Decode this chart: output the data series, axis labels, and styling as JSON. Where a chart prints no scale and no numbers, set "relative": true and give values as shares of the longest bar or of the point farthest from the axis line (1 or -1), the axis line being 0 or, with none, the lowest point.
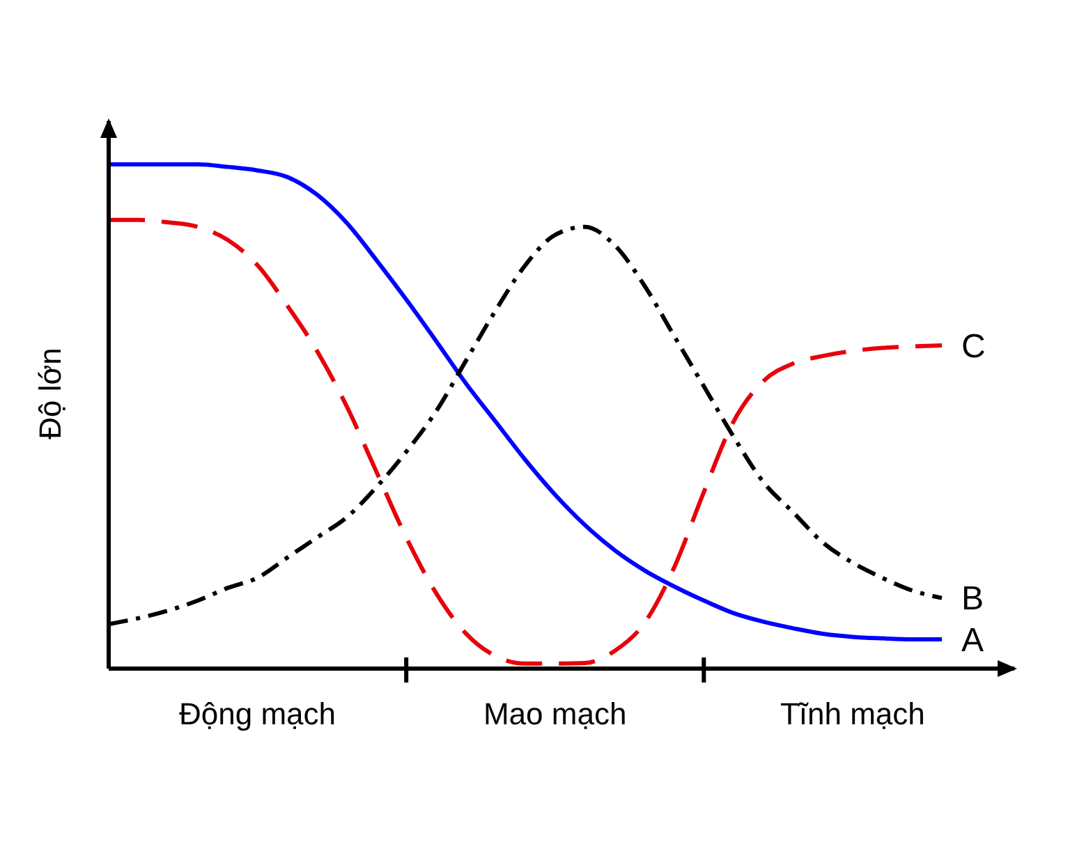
{
  "chart_data": {
    "type": "line",
    "relative": true,
    "ylabel": "Độ lớn",
    "categories": [
      null,
      null,
      null,
      null,
      null,
      "Động mạch",
      null,
      null,
      null,
      null,
      null,
      null,
      null,
      null,
      null,
      "Mao mạch",
      null,
      null,
      null,
      null,
      null,
      null,
      null,
      null,
      null,
      "Tĩnh mạch",
      null,
      null,
      null
    ],
    "legend": false,
    "marker": "none",
    "series": [
      {
        "name": "A",
        "color": "#0000ff",
        "line_style": "solid",
        "values": [
          1,
          1,
          1,
          1,
          0.995,
          0.988,
          0.975,
          0.94,
          0.884,
          0.81,
          0.732,
          0.65,
          0.566,
          0.49,
          0.414,
          0.345,
          0.285,
          0.235,
          0.195,
          0.163,
          0.135,
          0.11,
          0.093,
          0.08,
          0.069,
          0.063,
          0.06,
          0.058,
          0.058
        ]
      },
      {
        "name": "B",
        "color": "#000000",
        "line_style": "dashdot",
        "values": [
          0.088,
          0.1,
          0.115,
          0.135,
          0.16,
          0.18,
          0.22,
          0.26,
          0.3,
          0.36,
          0.43,
          0.51,
          0.61,
          0.71,
          0.8,
          0.86,
          0.876,
          0.84,
          0.76,
          0.66,
          0.56,
          0.46,
          0.37,
          0.31,
          0.25,
          0.21,
          0.18,
          0.155,
          0.14
        ]
      },
      {
        "name": "C",
        "color": "#e8000b",
        "line_style": "dashed",
        "values": [
          0.89,
          0.89,
          0.885,
          0.876,
          0.85,
          0.8,
          0.72,
          0.63,
          0.52,
          0.39,
          0.26,
          0.15,
          0.07,
          0.025,
          0.01,
          0.01,
          0.011,
          0.035,
          0.09,
          0.2,
          0.35,
          0.49,
          0.57,
          0.605,
          0.62,
          0.63,
          0.636,
          0.639,
          0.641
        ]
      }
    ]
  }
}
